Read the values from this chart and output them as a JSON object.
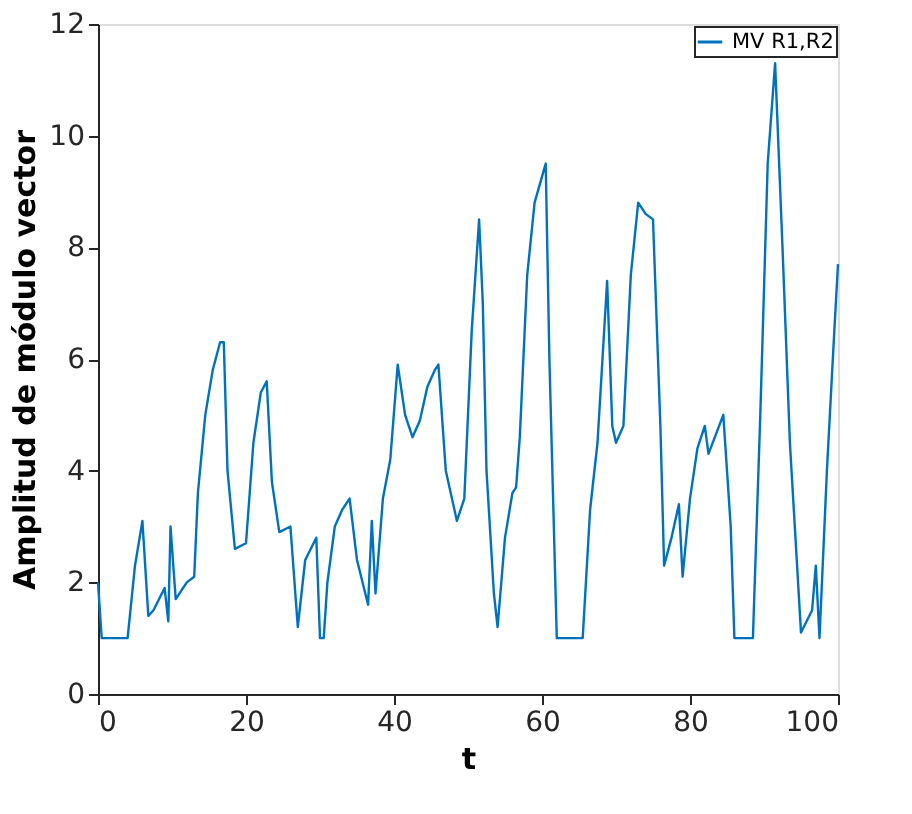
{
  "chart_data": {
    "type": "line",
    "xlabel": "t",
    "ylabel": "Amplitud de módulo vector",
    "xlim": [
      0,
      100
    ],
    "ylim": [
      0,
      12
    ],
    "xticks": [
      0,
      20,
      40,
      60,
      80,
      100
    ],
    "yticks": [
      0,
      2,
      4,
      6,
      8,
      10,
      12
    ],
    "grid": false,
    "legend": "top right",
    "series": [
      {
        "name": "MV R1,R2",
        "color": "#0072bd",
        "x": [
          0,
          0.5,
          4,
          5,
          6,
          6.8,
          7.5,
          9,
          9.5,
          9.8,
          10.5,
          12,
          13,
          13.5,
          14.5,
          15.5,
          16.5,
          17,
          17.5,
          18.5,
          20,
          21,
          22,
          22.8,
          23.5,
          24.5,
          26,
          27,
          28,
          29.5,
          30,
          30.5,
          31,
          32,
          33,
          34,
          35,
          36.5,
          37,
          37.5,
          38.5,
          39.5,
          40.5,
          41.5,
          42.5,
          43.5,
          44.5,
          45.5,
          46,
          47,
          48,
          48.5,
          49.5,
          50.5,
          51.5,
          52,
          52.5,
          53.5,
          54,
          55,
          56,
          56.5,
          57,
          58,
          59,
          60.5,
          61,
          62,
          65.5,
          66.5,
          67.5,
          68.8,
          69.5,
          70,
          71,
          72,
          73,
          74,
          75,
          76,
          76.5,
          77.5,
          78.5,
          79,
          80,
          81,
          82,
          82.5,
          84.5,
          85.5,
          86,
          88.5,
          89.5,
          90.5,
          91.5,
          92.5,
          93.5,
          95,
          96.5,
          97,
          97.5,
          98.5,
          99.5,
          100
        ],
        "values": [
          2.0,
          1.0,
          1.0,
          2.3,
          3.1,
          1.4,
          1.5,
          1.9,
          1.3,
          3.0,
          1.7,
          2.0,
          2.1,
          3.6,
          5.0,
          5.8,
          6.3,
          6.3,
          4.0,
          2.6,
          2.7,
          4.5,
          5.4,
          5.6,
          3.8,
          2.9,
          3.0,
          1.2,
          2.4,
          2.8,
          1.0,
          1.0,
          2.0,
          3.0,
          3.3,
          3.5,
          2.4,
          1.6,
          3.1,
          1.8,
          3.5,
          4.2,
          5.9,
          5.0,
          4.6,
          4.9,
          5.5,
          5.8,
          5.9,
          4.0,
          3.4,
          3.1,
          3.5,
          6.5,
          8.5,
          7.0,
          4.0,
          1.8,
          1.2,
          2.8,
          3.6,
          3.7,
          4.6,
          7.5,
          8.8,
          9.5,
          6.0,
          1.0,
          1.0,
          3.3,
          4.5,
          7.4,
          4.8,
          4.5,
          4.8,
          7.5,
          8.8,
          8.6,
          8.5,
          4.8,
          2.3,
          2.8,
          3.4,
          2.1,
          3.5,
          4.4,
          4.8,
          4.3,
          5.0,
          3.0,
          1.0,
          1.0,
          5.0,
          9.5,
          11.3,
          8.0,
          4.5,
          1.1,
          1.5,
          2.3,
          1.0,
          4.0,
          6.5,
          7.7
        ]
      }
    ]
  }
}
